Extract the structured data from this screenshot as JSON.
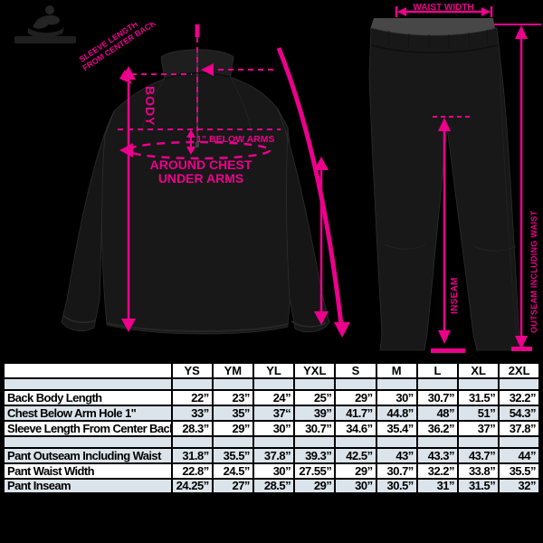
{
  "diagram": {
    "accent_color": "#EC008C",
    "jacket": {
      "body_label": "BODY",
      "below_arms_label": "1” BELOW ARMS",
      "around_chest_label_line1": "AROUND CHEST",
      "around_chest_label_line2": "UNDER ARMS",
      "sleeve_label_line1": "SLEEVE LENGTH",
      "sleeve_label_line2": "FROM CENTER BACK"
    },
    "pants": {
      "waist_label": "WAIST WIDTH",
      "outseam_label": "OUTSEAM INCLUDING WAIST",
      "inseam_label": "INSEAM"
    }
  },
  "size_table": {
    "columns": [
      "YS",
      "YM",
      "YL",
      "YXL",
      "S",
      "M",
      "L",
      "XL",
      "2XL"
    ],
    "rows": [
      {
        "label": "Back Body Length",
        "values": [
          "22”",
          "23”",
          "24”",
          "25”",
          "29”",
          "30”",
          "30.7”",
          "31.5”",
          "32.2”"
        ]
      },
      {
        "label": "Chest Below Arm Hole 1\"",
        "values": [
          "33”",
          "35”",
          "37“",
          "39”",
          "41.7”",
          "44.8”",
          "48”",
          "51”",
          "54.3”"
        ]
      },
      {
        "label": "Sleeve Length From Center Back",
        "values": [
          "28.3”",
          "29”",
          "30”",
          "30.7”",
          "34.6”",
          "35.4”",
          "36.2”",
          "37”",
          "37.8”"
        ]
      },
      {
        "label": "Pant Outseam Including Waist",
        "values": [
          "31.8”",
          "35.5”",
          "37.8”",
          "39.3”",
          "42.5”",
          "43”",
          "43.3”",
          "43.7”",
          "44”"
        ]
      },
      {
        "label": "Pant Waist Width",
        "values": [
          "22.8”",
          "24.5”",
          "30”",
          "27.55”",
          "29”",
          "30.7”",
          "32.2”",
          "33.8”",
          "35.5”"
        ]
      },
      {
        "label": "Pant Inseam",
        "values": [
          "24.25”",
          "27”",
          "28.5”",
          "29”",
          "30”",
          "30.5”",
          "31”",
          "31.5”",
          "32”"
        ]
      }
    ],
    "colors": {
      "base_row": "#FFFFFF",
      "alt_row": "#DCE4EB"
    }
  }
}
